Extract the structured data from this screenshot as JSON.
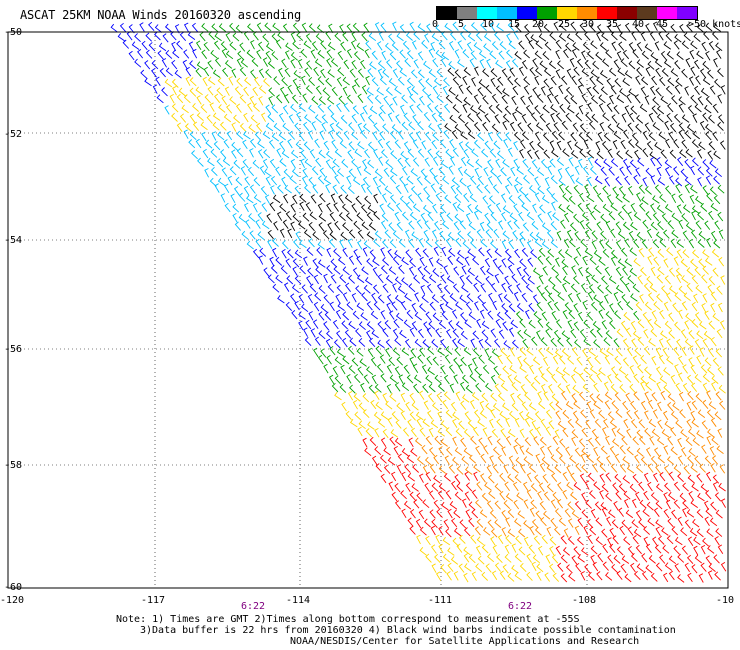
{
  "title": "ASCAT 25KM NOAA Winds 20160320 ascending",
  "colorbar": {
    "labels": [
      "0",
      "5",
      "10",
      "15",
      "20",
      "25",
      "30",
      "35",
      "40",
      "45",
      ">50 knots"
    ],
    "colors": [
      "#000000",
      "#7f7f7f",
      "#00ffff",
      "#00bfff",
      "#0000ff",
      "#00a000",
      "#ffd700",
      "#ff8c00",
      "#ff0000",
      "#8b0000",
      "#5c3a1e",
      "#ff00ff",
      "#8000ff"
    ]
  },
  "map": {
    "lon_labels": [
      "-120",
      "-117",
      "-114",
      "-111",
      "-108",
      "-10"
    ],
    "lat_labels": [
      "-50",
      "-52",
      "-54",
      "-56",
      "-58",
      "-60"
    ],
    "time_labels": [
      "6:22",
      "6:22"
    ],
    "grid": true,
    "swath_speed_bands": [
      {
        "zone": "north, near -51 to -53",
        "speed": "0-10 knots",
        "color": "#000000"
      },
      {
        "zone": "northwest corner -51 to -52",
        "speed": "20-25 knots",
        "color": "#ffd700"
      },
      {
        "zone": "-53 to -55",
        "speed": "5-15 knots",
        "color": "#00bfff"
      },
      {
        "zone": "-55 to -56.5",
        "speed": "15-20 knots",
        "color": "#0000ff"
      },
      {
        "zone": "-56 to -57",
        "speed": "20 knots",
        "color": "#00a000"
      },
      {
        "zone": "-57 to -58",
        "speed": "25 knots",
        "color": "#ffd700"
      },
      {
        "zone": "-58 to -60",
        "speed": "30-35 knots",
        "color": "#ff8c00"
      }
    ]
  },
  "notes": {
    "line1": "Note: 1) Times are GMT 2)Times along bottom correspond to measurement at -55S",
    "line2": "3)Data buffer is 22 hrs from 20160320 4) Black wind barbs indicate possible contamination",
    "line3": "NOAA/NESDIS/Center for Satellite Applications and Research"
  }
}
